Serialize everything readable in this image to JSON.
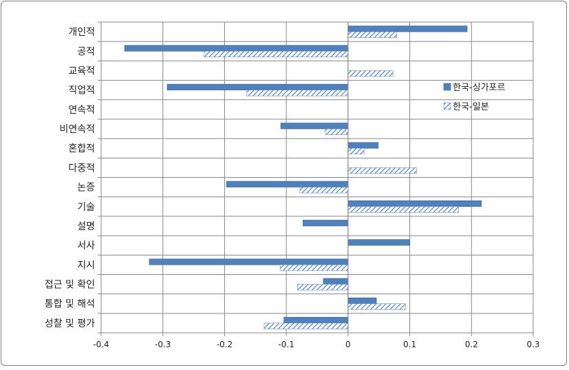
{
  "chart_data": {
    "type": "bar",
    "orientation": "horizontal",
    "categories": [
      "개인적",
      "공적",
      "교육적",
      "직업적",
      "연속적",
      "비연속적",
      "혼합적",
      "다중적",
      "논증",
      "기술",
      "설명",
      "서사",
      "지시",
      "접근 및 확인",
      "통합 및 해석",
      "성찰 및 평가"
    ],
    "series": [
      {
        "name": "한국-싱가포르",
        "values": [
          0.193,
          -0.362,
          0,
          -0.293,
          0,
          -0.109,
          0.049,
          0,
          -0.197,
          0.216,
          -0.073,
          0.1,
          -0.322,
          -0.04,
          0.046,
          -0.104
        ],
        "fill": "#4f81bd",
        "pattern": "solid"
      },
      {
        "name": "한국-일본",
        "values": [
          0.079,
          -0.233,
          0.073,
          -0.164,
          0,
          -0.037,
          0.026,
          0.111,
          -0.078,
          0.179,
          0,
          0,
          -0.11,
          -0.082,
          0.093,
          -0.136
        ],
        "fill": "#4f81bd",
        "pattern": "hatched"
      }
    ],
    "xlim": [
      -0.4,
      0.3
    ],
    "xticks": [
      "-0.4",
      "-0.3",
      "-0.2",
      "-0.1",
      "0",
      "0.1",
      "0.2",
      "0.3"
    ],
    "grid": true,
    "legend_position": "right-center"
  },
  "colors": {
    "bar": "#4f81bd",
    "bar_edge": "#385d8a",
    "grid": "#868686",
    "axis": "#868686"
  }
}
